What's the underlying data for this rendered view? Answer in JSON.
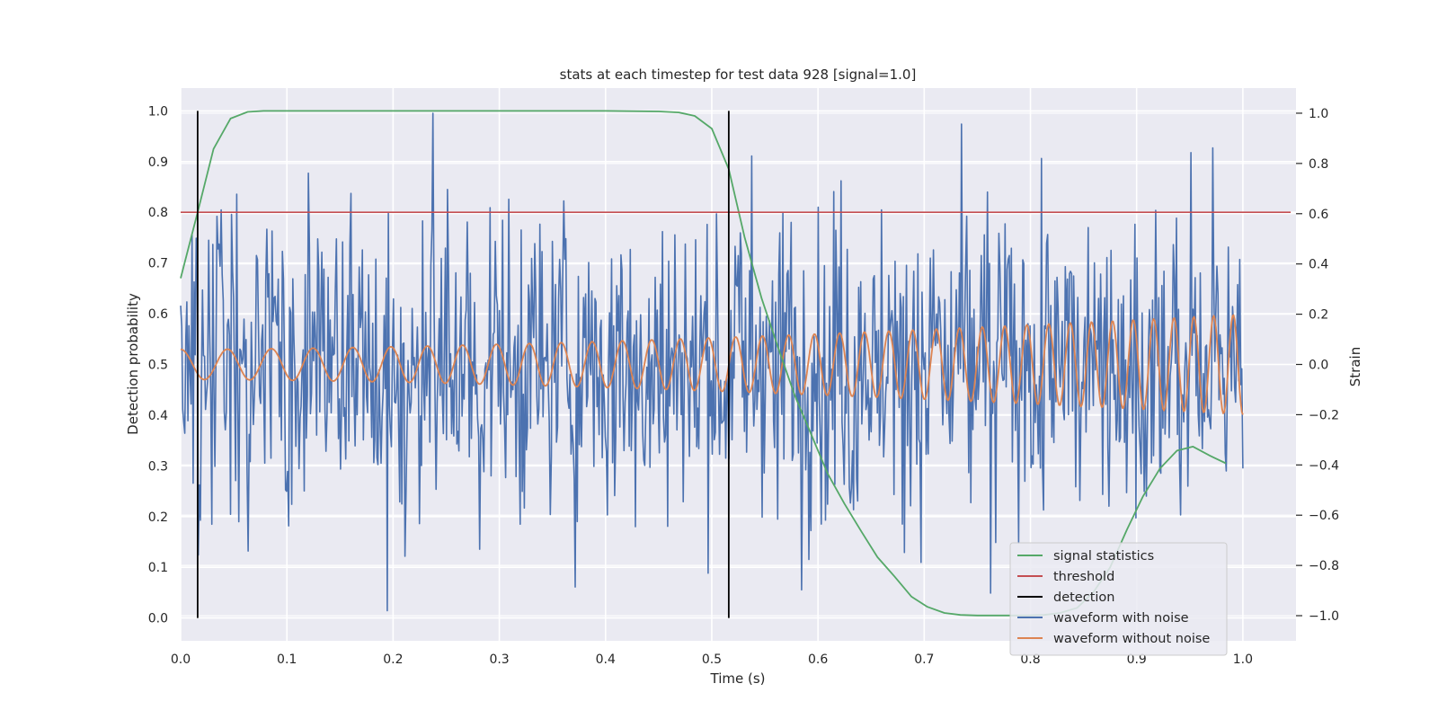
{
  "chart_data": {
    "type": "line",
    "title": "stats at each timestep for test data 928 [signal=1.0]",
    "xlabel": "Time (s)",
    "ylabel": "Detection probability",
    "y2label": "Strain",
    "xlim": [
      0.0,
      1.05
    ],
    "ylim": [
      -0.045,
      1.045
    ],
    "y2lim": [
      -1.1,
      1.1
    ],
    "xticks": [
      0.0,
      0.1,
      0.2,
      0.3,
      0.4,
      0.5,
      0.6,
      0.7,
      0.8,
      0.9,
      1.0
    ],
    "xtick_labels": [
      "0.0",
      "0.1",
      "0.2",
      "0.3",
      "0.4",
      "0.5",
      "0.6",
      "0.7",
      "0.8",
      "0.9",
      "1.0"
    ],
    "yticks": [
      0.0,
      0.1,
      0.2,
      0.3,
      0.4,
      0.5,
      0.6,
      0.7,
      0.8,
      0.9,
      1.0
    ],
    "ytick_labels": [
      "0.0",
      "0.1",
      "0.2",
      "0.3",
      "0.4",
      "0.5",
      "0.6",
      "0.7",
      "0.8",
      "0.9",
      "1.0"
    ],
    "y2ticks": [
      1.0,
      0.8,
      0.6,
      0.4,
      0.2,
      0.0,
      -0.2,
      -0.4,
      -0.6,
      -0.8,
      -1.0
    ],
    "y2tick_labels": [
      "1.0",
      "0.8",
      "0.6",
      "0.4",
      "0.2",
      "0.0",
      "−0.2",
      "−0.4",
      "−0.6",
      "−0.8",
      "−1.0"
    ],
    "grid": true,
    "legend_position": "bottom-right",
    "colors": {
      "plot_bg": "#eaeaf2",
      "grid": "#ffffff",
      "signal_statistics": "#55a868",
      "threshold": "#c44e52",
      "detection": "#000000",
      "waveform_with_noise": "#4c72b0",
      "waveform_without_noise": "#dd8452"
    },
    "legend": [
      {
        "name": "signal statistics",
        "key": "signal_statistics"
      },
      {
        "name": "threshold",
        "key": "threshold"
      },
      {
        "name": "detection",
        "key": "detection"
      },
      {
        "name": "waveform with noise",
        "key": "waveform_with_noise"
      },
      {
        "name": "waveform without noise",
        "key": "waveform_without_noise"
      }
    ],
    "series": [
      {
        "name": "signal statistics",
        "axis": "left",
        "x": [
          0.0,
          0.016,
          0.031,
          0.047,
          0.063,
          0.078,
          0.094,
          0.2,
          0.3,
          0.4,
          0.45,
          0.469,
          0.484,
          0.5,
          0.516,
          0.531,
          0.547,
          0.563,
          0.578,
          0.594,
          0.609,
          0.625,
          0.641,
          0.656,
          0.672,
          0.688,
          0.703,
          0.719,
          0.734,
          0.75,
          0.766,
          0.781,
          0.797,
          0.813,
          0.828,
          0.844,
          0.859,
          0.875,
          0.891,
          0.906,
          0.922,
          0.938,
          0.953,
          0.969,
          0.984
        ],
        "values": [
          0.67,
          0.8,
          0.925,
          0.985,
          0.998,
          1.0,
          1.0,
          1.0,
          1.0,
          1.0,
          0.999,
          0.997,
          0.99,
          0.965,
          0.885,
          0.75,
          0.63,
          0.53,
          0.44,
          0.36,
          0.285,
          0.225,
          0.17,
          0.12,
          0.082,
          0.042,
          0.022,
          0.01,
          0.006,
          0.005,
          0.005,
          0.005,
          0.005,
          0.006,
          0.01,
          0.02,
          0.05,
          0.1,
          0.175,
          0.24,
          0.295,
          0.33,
          0.338,
          0.32,
          0.305
        ]
      },
      {
        "name": "threshold",
        "axis": "left",
        "x": [
          0.0,
          1.045
        ],
        "values": [
          0.8,
          0.8
        ]
      },
      {
        "name": "detection",
        "axis": "left",
        "segments": [
          {
            "x": 0.016,
            "y0": 0.0,
            "y1": 1.0
          },
          {
            "x": 0.516,
            "y0": 0.0,
            "y1": 1.0
          }
        ]
      },
      {
        "name": "waveform with noise",
        "axis": "right",
        "x_range": [
          0.0,
          1.0
        ],
        "samples": 1024,
        "noise_std": 0.3,
        "noise_clip": [
          -0.98,
          0.98
        ],
        "notable_values": [
          {
            "x": 0.238,
            "y": 1.0
          },
          {
            "x": 0.195,
            "y": -0.98
          },
          {
            "x": 0.538,
            "y": 0.83
          },
          {
            "x": 0.762,
            "y": -0.91
          }
        ]
      },
      {
        "name": "waveform without noise",
        "axis": "right",
        "x_range": [
          0.0,
          1.0
        ],
        "samples": 1024,
        "amplitude_start": 0.06,
        "amplitude_end": 0.2,
        "cycles_start": 22,
        "cycles_end": 55
      }
    ]
  }
}
